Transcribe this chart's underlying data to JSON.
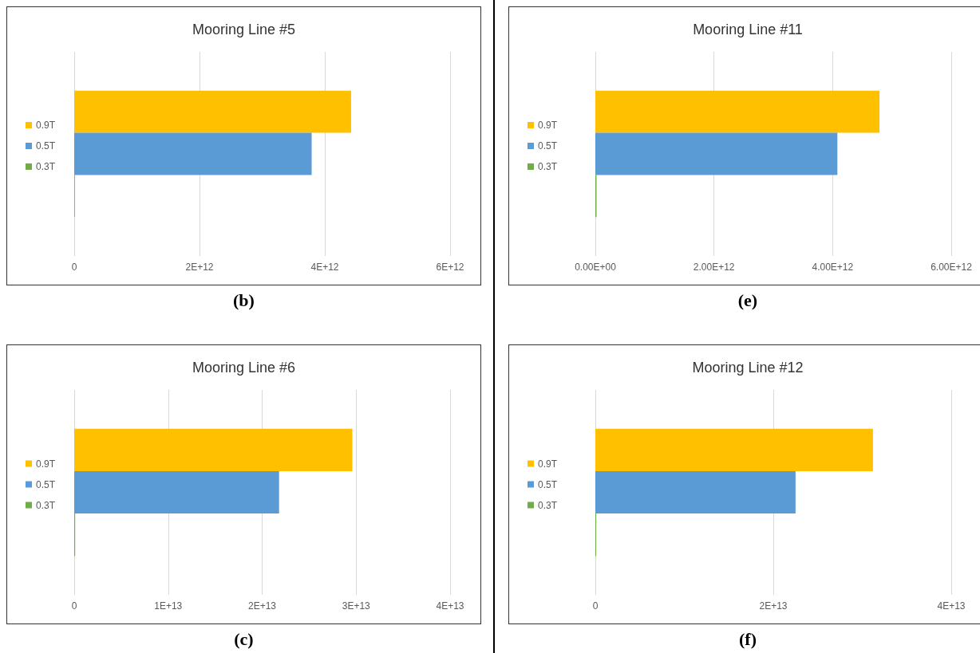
{
  "chart_data": [
    {
      "type": "bar",
      "orientation": "horizontal",
      "title": "Mooring Line #5",
      "categories": [
        null
      ],
      "legend": "left",
      "grid": "x",
      "xlim": [
        0,
        6000000000000.0
      ],
      "xticks": [
        {
          "value": 0,
          "label": "0"
        },
        {
          "value": 2000000000000.0,
          "label": "2E+12"
        },
        {
          "value": 4000000000000.0,
          "label": "4E+12"
        },
        {
          "value": 6000000000000.0,
          "label": "6E+12"
        }
      ],
      "annotations": [
        "(b)"
      ],
      "series": [
        {
          "name": "0.9T",
          "color": "#ffc000",
          "values": [
            4420000000000.0
          ]
        },
        {
          "name": "0.5T",
          "color": "#5b9bd5",
          "values": [
            3790000000000.0
          ]
        },
        {
          "name": "0.3T",
          "color": "#70ad47",
          "values": [
            10000000000.0
          ]
        }
      ]
    },
    {
      "type": "bar",
      "orientation": "horizontal",
      "title": "Mooring Line #11",
      "categories": [
        null
      ],
      "legend": "left",
      "grid": "x",
      "xlim": [
        0,
        6000000000000.0
      ],
      "xticks": [
        {
          "value": 0,
          "label": "0.00E+00"
        },
        {
          "value": 2000000000000.0,
          "label": "2.00E+12"
        },
        {
          "value": 4000000000000.0,
          "label": "4.00E+12"
        },
        {
          "value": 6000000000000.0,
          "label": "6.00E+12"
        }
      ],
      "annotations": [
        "(e)"
      ],
      "series": [
        {
          "name": "0.9T",
          "color": "#ffc000",
          "values": [
            4790000000000.0
          ]
        },
        {
          "name": "0.5T",
          "color": "#5b9bd5",
          "values": [
            4080000000000.0
          ]
        },
        {
          "name": "0.3T",
          "color": "#70ad47",
          "values": [
            20000000000.0
          ]
        }
      ]
    },
    {
      "type": "bar",
      "orientation": "horizontal",
      "title": "Mooring Line #6",
      "categories": [
        null
      ],
      "legend": "left",
      "grid": "x",
      "xlim": [
        0,
        40000000000000.0
      ],
      "xticks": [
        {
          "value": 0,
          "label": "0"
        },
        {
          "value": 10000000000000.0,
          "label": "1E+13"
        },
        {
          "value": 20000000000000.0,
          "label": "2E+13"
        },
        {
          "value": 30000000000000.0,
          "label": "3E+13"
        },
        {
          "value": 40000000000000.0,
          "label": "4E+13"
        }
      ],
      "annotations": [
        "(c)"
      ],
      "series": [
        {
          "name": "0.9T",
          "color": "#ffc000",
          "values": [
            29600000000000.0
          ]
        },
        {
          "name": "0.5T",
          "color": "#5b9bd5",
          "values": [
            21800000000000.0
          ]
        },
        {
          "name": "0.3T",
          "color": "#70ad47",
          "values": [
            100000000000.0
          ]
        }
      ]
    },
    {
      "type": "bar",
      "orientation": "horizontal",
      "title": "Mooring Line #12",
      "categories": [
        null
      ],
      "legend": "left",
      "grid": "x",
      "xlim": [
        0,
        40000000000000.0
      ],
      "xticks": [
        {
          "value": 0,
          "label": "0"
        },
        {
          "value": 20000000000000.0,
          "label": "2E+13"
        },
        {
          "value": 40000000000000.0,
          "label": "4E+13"
        }
      ],
      "annotations": [
        "(f)"
      ],
      "series": [
        {
          "name": "0.9T",
          "color": "#ffc000",
          "values": [
            31200000000000.0
          ]
        },
        {
          "name": "0.5T",
          "color": "#5b9bd5",
          "values": [
            22500000000000.0
          ]
        },
        {
          "name": "0.3T",
          "color": "#70ad47",
          "values": [
            100000000000.0
          ]
        }
      ]
    }
  ]
}
